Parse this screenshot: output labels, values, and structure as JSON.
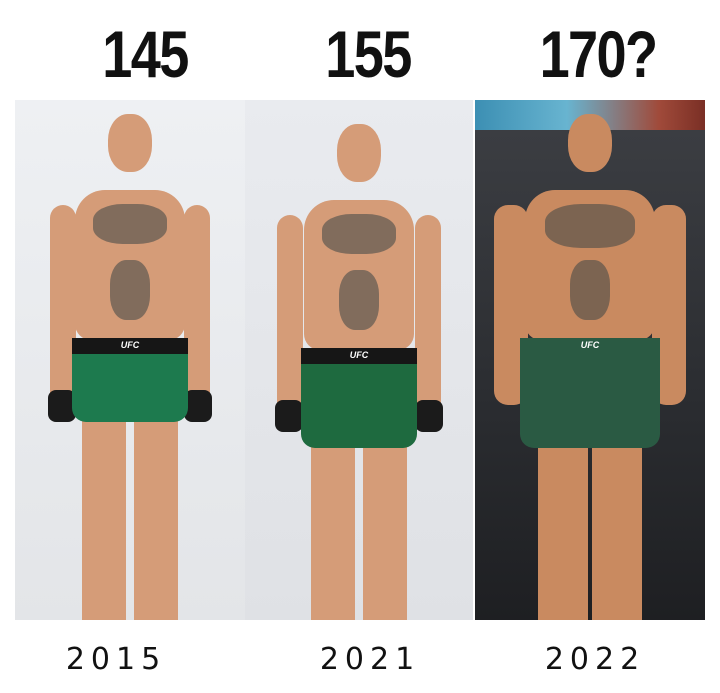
{
  "columns": [
    {
      "weight": "145",
      "year": "2015",
      "shorts_label": "UFC"
    },
    {
      "weight": "155",
      "year": "2021",
      "shorts_label": "UFC"
    },
    {
      "weight": "170?",
      "year": "2022",
      "shorts_label": "UFC"
    }
  ],
  "colors": {
    "text": "#111111",
    "shorts": "#1f6b44",
    "skin": "#d59c78"
  }
}
